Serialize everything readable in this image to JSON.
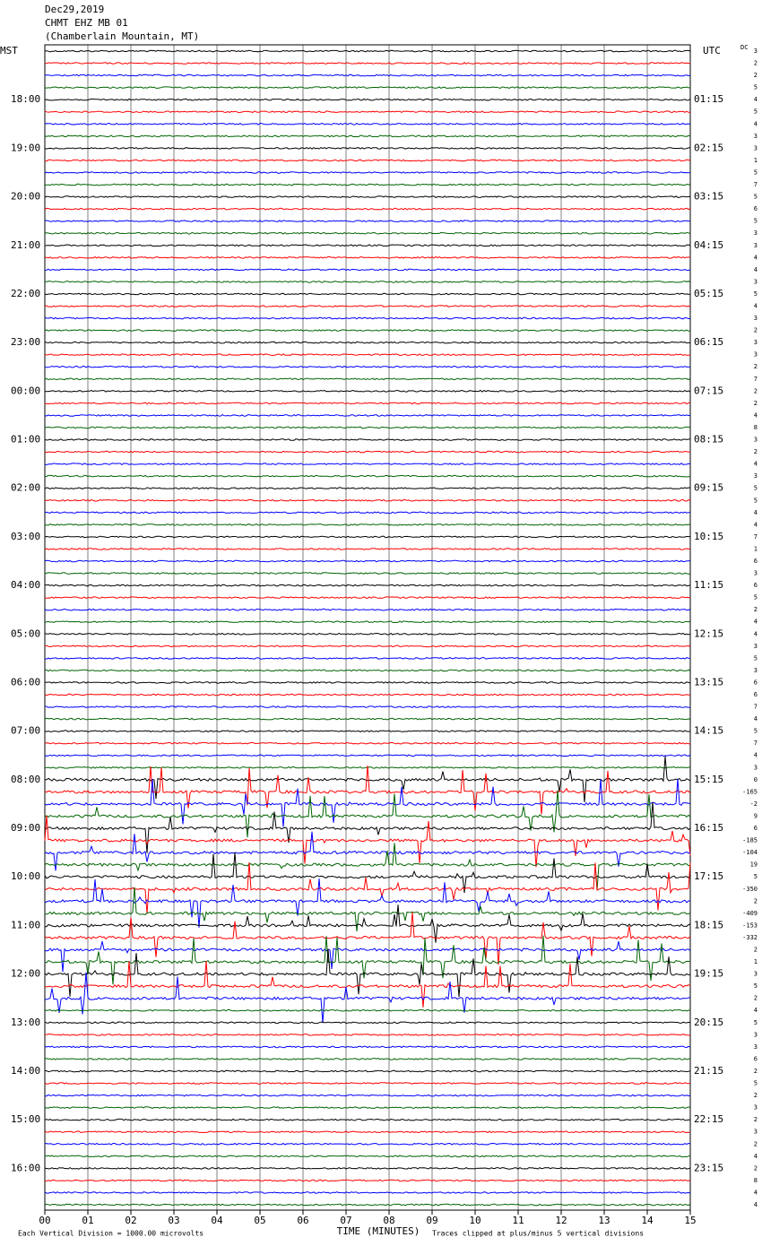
{
  "chart_data": {
    "type": "helicorder",
    "title": "Dec29,2019",
    "subtitle": "CHMT EHZ MB 01",
    "location": "(Chamberlain Mountain, MT)",
    "left_label": "MST",
    "right_label": "UTC",
    "dc_label": "DC",
    "hour_labels": [
      "18:00",
      "19:00",
      "20:00",
      "21:00",
      "22:00",
      "23:00",
      "00:00",
      "01:00",
      "02:00",
      "03:00",
      "04:00",
      "05:00",
      "06:00",
      "07:00",
      "08:00",
      "09:00",
      "10:00",
      "11:00",
      "12:00",
      "13:00",
      "14:00",
      "15:00",
      "16:00"
    ],
    "utc_labels": [
      "01:15",
      "02:15",
      "03:15",
      "04:15",
      "05:15",
      "06:15",
      "07:15",
      "08:15",
      "09:15",
      "10:15",
      "11:15",
      "12:15",
      "13:15",
      "14:15",
      "15:15",
      "16:15",
      "17:15",
      "18:15",
      "19:15",
      "20:15",
      "21:15",
      "22:15",
      "23:15"
    ],
    "dc_offsets": [
      3,
      2,
      2,
      5,
      4,
      5,
      4,
      3,
      3,
      1,
      5,
      7,
      5,
      6,
      5,
      3,
      3,
      4,
      4,
      3,
      5,
      4,
      3,
      2,
      3,
      3,
      2,
      7,
      2,
      2,
      4,
      8,
      3,
      2,
      4,
      3,
      5,
      5,
      4,
      4,
      7,
      1,
      6,
      3,
      6,
      5,
      2,
      4,
      4,
      3,
      5,
      3,
      6,
      6,
      7,
      4,
      5,
      7,
      4,
      3,
      0,
      -165,
      -2,
      9,
      6,
      -185,
      -104,
      19,
      5,
      -350,
      2,
      -409,
      -153,
      -332,
      2,
      1,
      3,
      5,
      2,
      4,
      5,
      3,
      3,
      6,
      2,
      5,
      2,
      3,
      2,
      3,
      2,
      4,
      2,
      8,
      4,
      4
    ],
    "trace_colors": [
      "#000000",
      "#ff0000",
      "#0000ff",
      "#006400"
    ],
    "xlabel": "TIME (MINUTES)",
    "xlim": [
      0,
      15
    ],
    "xticks": [
      {
        "value": 0,
        "label": "00"
      },
      {
        "value": 1,
        "label": "01"
      },
      {
        "value": 2,
        "label": "02"
      },
      {
        "value": 3,
        "label": "03"
      },
      {
        "value": 4,
        "label": "04"
      },
      {
        "value": 5,
        "label": "05"
      },
      {
        "value": 6,
        "label": "06"
      },
      {
        "value": 7,
        "label": "07"
      },
      {
        "value": 8,
        "label": "08"
      },
      {
        "value": 9,
        "label": "09"
      },
      10,
      11,
      12,
      13,
      14,
      15
    ],
    "grid": true,
    "footer_left": "Each Vertical Division = 1000.00 microvolts",
    "footer_right": "Traces clipped at plus/minus 5 vertical divisions"
  }
}
